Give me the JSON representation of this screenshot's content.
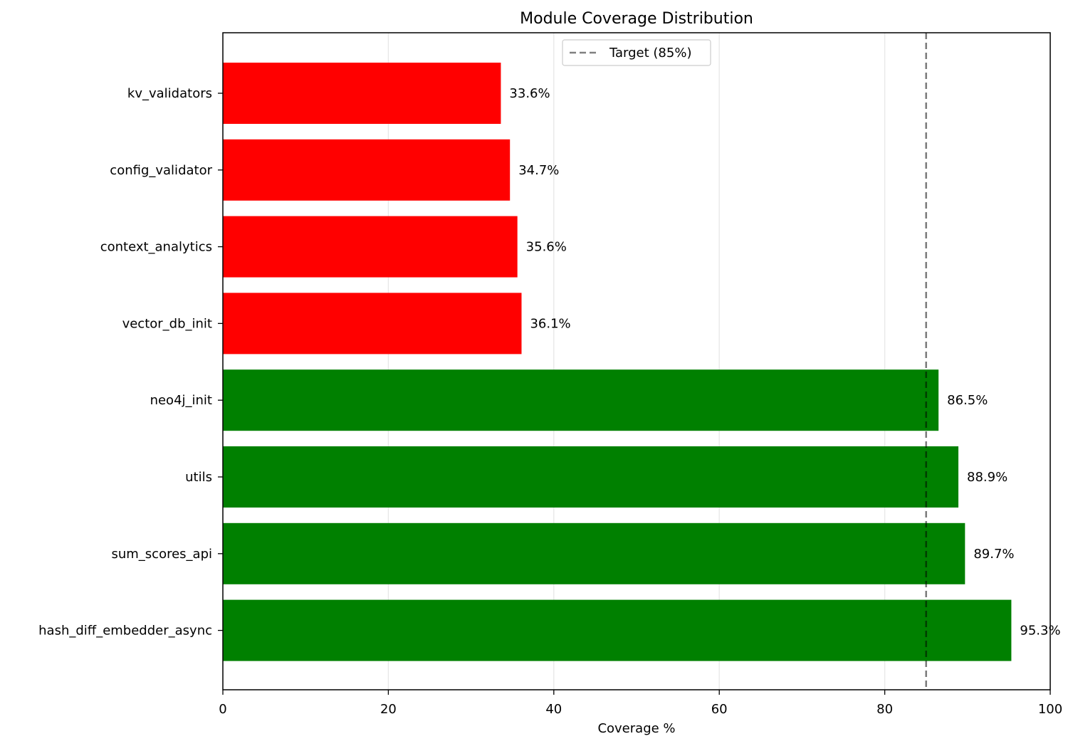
{
  "chart_data": {
    "type": "bar",
    "orientation": "horizontal",
    "title": "Module Coverage Distribution",
    "xlabel": "Coverage %",
    "ylabel": "",
    "xlim": [
      0,
      100
    ],
    "xticks": [
      "0",
      "20",
      "40",
      "60",
      "80",
      "100"
    ],
    "grid": "x-axis vertical lines",
    "categories": [
      "kv_validators",
      "config_validator",
      "context_analytics",
      "vector_db_init",
      "neo4j_init",
      "utils",
      "sum_scores_api",
      "hash_diff_embedder_async"
    ],
    "values": [
      33.6,
      34.7,
      35.6,
      36.1,
      86.5,
      88.9,
      89.7,
      95.3
    ],
    "value_labels": [
      "33.6%",
      "34.7%",
      "35.6%",
      "36.1%",
      "86.5%",
      "88.9%",
      "89.7%",
      "95.3%"
    ],
    "colors": [
      "#ff0000",
      "#ff0000",
      "#ff0000",
      "#ff0000",
      "#008000",
      "#008000",
      "#008000",
      "#008000"
    ],
    "target": {
      "value": 85,
      "label": "Target (85%)",
      "style": "dashed",
      "color": "#808080"
    },
    "legend": {
      "placement": "upper-center",
      "entries": [
        "Target (85%)"
      ]
    }
  }
}
